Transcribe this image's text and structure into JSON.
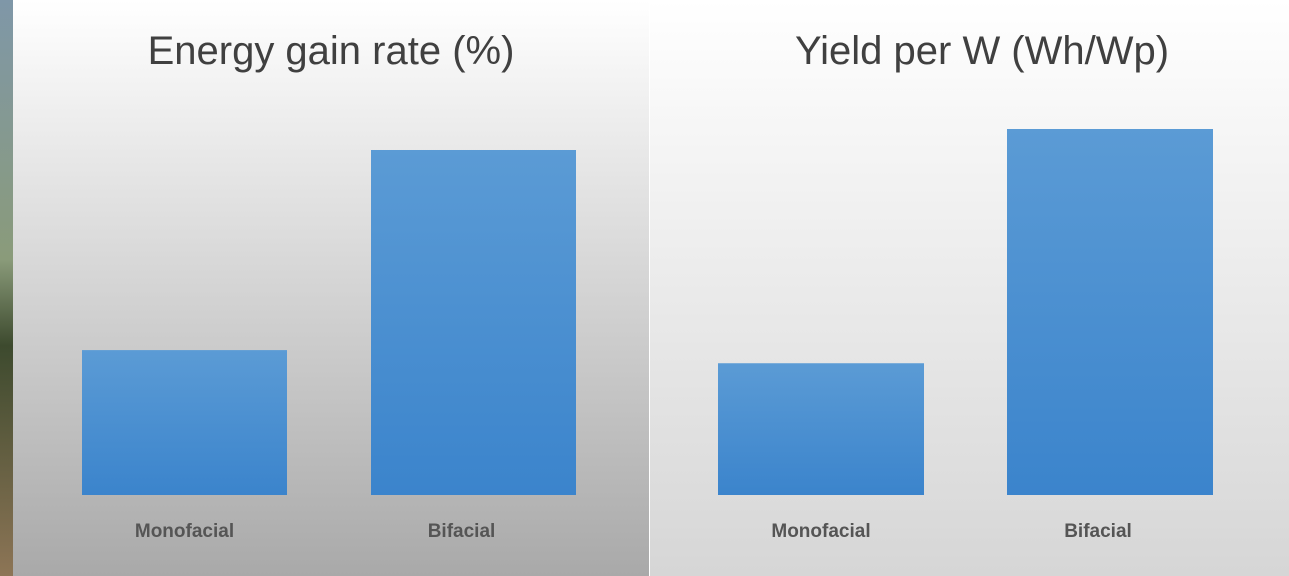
{
  "chart_data": [
    {
      "type": "bar",
      "title": "Energy gain rate (%)",
      "categories": [
        "Monofacial",
        "Bifacial"
      ],
      "values": [
        42,
        100
      ],
      "color": "#4a8fd4",
      "ylim": [
        0,
        100
      ]
    },
    {
      "type": "bar",
      "title": "Yield per W (Wh/Wp)",
      "categories": [
        "Monofacial",
        "Bifacial"
      ],
      "values": [
        36,
        100
      ],
      "color": "#4a8fd4",
      "ylim": [
        0,
        100
      ]
    }
  ]
}
